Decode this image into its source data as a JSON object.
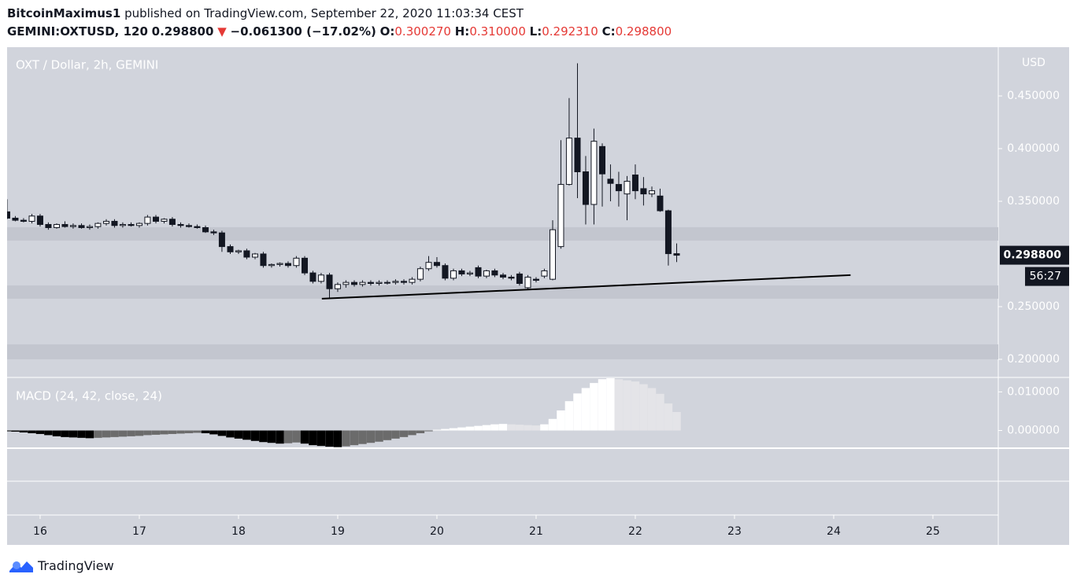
{
  "header": {
    "author": "BitcoinMaximus1",
    "published": "published on TradingView.com, September 22, 2020 11:03:34 CEST",
    "symbol": "GEMINI:OXTUSD, 120",
    "last": "0.298800",
    "arrow": "▼",
    "change": "−0.061300 (−17.02%)",
    "ohlc": [
      {
        "label": "O:",
        "value": "0.300270"
      },
      {
        "label": "H:",
        "value": "0.310000"
      },
      {
        "label": "L:",
        "value": "0.292310"
      },
      {
        "label": "C:",
        "value": "0.298800"
      }
    ]
  },
  "footer": {
    "brand": "TradingView"
  },
  "chart_data": [
    {
      "type": "candlestick",
      "title": "OXT / Dollar, 2h, GEMINI",
      "axis_label": "USD",
      "up_color": "#ffffff",
      "down_color": "#131722",
      "wick_color": "#131722",
      "x": [
        15.667,
        15.75,
        15.833,
        15.917,
        16,
        16.083,
        16.167,
        16.25,
        16.333,
        16.417,
        16.5,
        16.583,
        16.667,
        16.75,
        16.833,
        16.917,
        17,
        17.083,
        17.167,
        17.25,
        17.333,
        17.417,
        17.5,
        17.583,
        17.667,
        17.75,
        17.833,
        17.917,
        18,
        18.083,
        18.167,
        18.25,
        18.333,
        18.417,
        18.5,
        18.583,
        18.667,
        18.75,
        18.833,
        18.917,
        19,
        19.083,
        19.167,
        19.25,
        19.333,
        19.417,
        19.5,
        19.583,
        19.667,
        19.75,
        19.833,
        19.917,
        20,
        20.083,
        20.167,
        20.25,
        20.333,
        20.417,
        20.5,
        20.583,
        20.667,
        20.75,
        20.833,
        20.917,
        21,
        21.083,
        21.167,
        21.25,
        21.333,
        21.417,
        21.5,
        21.583,
        21.667,
        21.75,
        21.833,
        21.917,
        22,
        22.083,
        22.167,
        22.25,
        22.333,
        22.417
      ],
      "open": [
        0.34,
        0.334,
        0.332,
        0.331,
        0.336,
        0.328,
        0.325,
        0.328,
        0.326,
        0.327,
        0.325,
        0.326,
        0.329,
        0.331,
        0.327,
        0.328,
        0.327,
        0.329,
        0.335,
        0.331,
        0.333,
        0.328,
        0.327,
        0.326,
        0.325,
        0.321,
        0.32,
        0.307,
        0.302,
        0.303,
        0.297,
        0.3,
        0.289,
        0.29,
        0.291,
        0.289,
        0.296,
        0.282,
        0.274,
        0.28,
        0.267,
        0.271,
        0.273,
        0.271,
        0.273,
        0.272,
        0.273,
        0.273,
        0.274,
        0.273,
        0.276,
        0.286,
        0.292,
        0.289,
        0.277,
        0.284,
        0.281,
        0.287,
        0.279,
        0.284,
        0.28,
        0.278,
        0.281,
        0.268,
        0.276,
        0.279,
        0.276,
        0.307,
        0.366,
        0.41,
        0.378,
        0.347,
        0.402,
        0.371,
        0.366,
        0.357,
        0.375,
        0.362,
        0.357,
        0.355,
        0.341,
        0.30027
      ],
      "high": [
        0.352,
        0.336,
        0.334,
        0.338,
        0.338,
        0.33,
        0.329,
        0.331,
        0.329,
        0.329,
        0.328,
        0.33,
        0.333,
        0.333,
        0.33,
        0.33,
        0.33,
        0.337,
        0.337,
        0.334,
        0.335,
        0.33,
        0.329,
        0.328,
        0.327,
        0.323,
        0.322,
        0.309,
        0.304,
        0.305,
        0.301,
        0.302,
        0.291,
        0.292,
        0.293,
        0.298,
        0.298,
        0.284,
        0.282,
        0.282,
        0.273,
        0.275,
        0.275,
        0.275,
        0.275,
        0.275,
        0.275,
        0.276,
        0.276,
        0.278,
        0.288,
        0.298,
        0.297,
        0.291,
        0.286,
        0.286,
        0.284,
        0.289,
        0.285,
        0.286,
        0.282,
        0.28,
        0.283,
        0.28,
        0.278,
        0.286,
        0.332,
        0.408,
        0.448,
        0.481,
        0.393,
        0.419,
        0.405,
        0.385,
        0.378,
        0.374,
        0.385,
        0.373,
        0.364,
        0.362,
        0.342,
        0.31
      ],
      "low": [
        0.333,
        0.331,
        0.33,
        0.329,
        0.326,
        0.323,
        0.324,
        0.325,
        0.324,
        0.324,
        0.323,
        0.324,
        0.327,
        0.325,
        0.325,
        0.326,
        0.325,
        0.327,
        0.329,
        0.329,
        0.326,
        0.325,
        0.325,
        0.324,
        0.32,
        0.318,
        0.302,
        0.3,
        0.3,
        0.295,
        0.295,
        0.287,
        0.287,
        0.288,
        0.287,
        0.287,
        0.28,
        0.272,
        0.272,
        0.2575,
        0.264,
        0.268,
        0.269,
        0.269,
        0.27,
        0.27,
        0.271,
        0.271,
        0.271,
        0.271,
        0.274,
        0.284,
        0.287,
        0.275,
        0.275,
        0.279,
        0.279,
        0.277,
        0.277,
        0.278,
        0.276,
        0.275,
        0.27,
        0.266,
        0.273,
        0.277,
        0.275,
        0.305,
        0.365,
        0.353,
        0.328,
        0.328,
        0.345,
        0.35,
        0.345,
        0.332,
        0.352,
        0.346,
        0.354,
        0.34,
        0.289,
        0.29231
      ],
      "close": [
        0.334,
        0.332,
        0.331,
        0.336,
        0.328,
        0.325,
        0.328,
        0.326,
        0.327,
        0.325,
        0.326,
        0.329,
        0.331,
        0.327,
        0.328,
        0.327,
        0.329,
        0.335,
        0.331,
        0.333,
        0.328,
        0.327,
        0.326,
        0.325,
        0.321,
        0.32,
        0.307,
        0.302,
        0.303,
        0.297,
        0.3,
        0.289,
        0.29,
        0.291,
        0.289,
        0.296,
        0.282,
        0.274,
        0.28,
        0.267,
        0.271,
        0.273,
        0.271,
        0.273,
        0.272,
        0.273,
        0.273,
        0.274,
        0.273,
        0.276,
        0.286,
        0.292,
        0.289,
        0.277,
        0.284,
        0.281,
        0.282,
        0.279,
        0.284,
        0.28,
        0.278,
        0.277,
        0.272,
        0.278,
        0.275,
        0.284,
        0.323,
        0.366,
        0.41,
        0.378,
        0.347,
        0.407,
        0.376,
        0.367,
        0.36,
        0.369,
        0.36,
        0.357,
        0.36,
        0.341,
        0.3003,
        0.2988
      ],
      "zones": [
        [
          0.3254,
          0.3127
        ],
        [
          0.2701,
          0.2575
        ],
        [
          0.2142,
          0.2
        ]
      ],
      "trendline": {
        "x": [
          18.84,
          24.17
        ],
        "y": [
          0.2575,
          0.2799
        ]
      },
      "last_price": {
        "value": 0.2988,
        "label": "0.298800"
      },
      "countdown": "56:27",
      "ylim": [
        0.1828,
        0.4963
      ],
      "yticks": [
        {
          "value": 0.45,
          "label": "0.450000"
        },
        {
          "value": 0.4,
          "label": "0.400000"
        },
        {
          "value": 0.35,
          "label": "0.350000"
        },
        {
          "value": 0.25,
          "label": "0.250000"
        },
        {
          "value": 0.2,
          "label": "0.200000"
        }
      ],
      "xlim": [
        15.667,
        25.659
      ],
      "xticks": [
        16,
        17,
        18,
        19,
        20,
        21,
        22,
        23,
        24,
        25
      ]
    },
    {
      "type": "histogram_macd",
      "title": "MACD (24, 42, close, 24)",
      "colors": {
        "up_rising": "#ffffff",
        "up_falling": "#e4e4e8",
        "down_falling": "#000000",
        "down_rising": "#6b6b6b"
      },
      "x": [
        15.667,
        15.75,
        15.833,
        15.917,
        16,
        16.083,
        16.167,
        16.25,
        16.333,
        16.417,
        16.5,
        16.583,
        16.667,
        16.75,
        16.833,
        16.917,
        17,
        17.083,
        17.167,
        17.25,
        17.333,
        17.417,
        17.5,
        17.583,
        17.667,
        17.75,
        17.833,
        17.917,
        18,
        18.083,
        18.167,
        18.25,
        18.333,
        18.417,
        18.5,
        18.583,
        18.667,
        18.75,
        18.833,
        18.917,
        19,
        19.083,
        19.167,
        19.25,
        19.333,
        19.417,
        19.5,
        19.583,
        19.667,
        19.75,
        19.833,
        19.917,
        20,
        20.083,
        20.167,
        20.25,
        20.333,
        20.417,
        20.5,
        20.583,
        20.667,
        20.75,
        20.833,
        20.917,
        21,
        21.083,
        21.167,
        21.25,
        21.333,
        21.417,
        21.5,
        21.583,
        21.667,
        21.75,
        21.833,
        21.917,
        22,
        22.083,
        22.167,
        22.25,
        22.333,
        22.417
      ],
      "values": [
        -0.0002,
        -0.0003,
        -0.0005,
        -0.0007,
        -0.0009,
        -0.0012,
        -0.0015,
        -0.0017,
        -0.0018,
        -0.0019,
        -0.002,
        -0.0019,
        -0.0018,
        -0.0017,
        -0.0016,
        -0.0015,
        -0.0014,
        -0.0012,
        -0.0011,
        -0.001,
        -0.0009,
        -0.0008,
        -0.0007,
        -0.0006,
        -0.0007,
        -0.001,
        -0.0014,
        -0.0018,
        -0.0021,
        -0.0024,
        -0.0027,
        -0.003,
        -0.0032,
        -0.0034,
        -0.0033,
        -0.0031,
        -0.0034,
        -0.0038,
        -0.004,
        -0.0042,
        -0.0043,
        -0.0041,
        -0.0038,
        -0.0035,
        -0.0032,
        -0.0029,
        -0.0025,
        -0.0021,
        -0.0017,
        -0.0012,
        -0.0007,
        -0.0002,
        0.0002,
        0.0004,
        0.0006,
        0.0008,
        0.001,
        0.0012,
        0.0014,
        0.0016,
        0.0017,
        0.0016,
        0.0015,
        0.0014,
        0.0013,
        0.0016,
        0.003,
        0.0052,
        0.0076,
        0.0096,
        0.011,
        0.0123,
        0.0133,
        0.0136,
        0.0133,
        0.013,
        0.0127,
        0.012,
        0.011,
        0.0095,
        0.007,
        0.0048
      ],
      "ylim": [
        -0.00458,
        0.01375
      ],
      "yticks": [
        {
          "value": 0.01,
          "label": "0.010000"
        },
        {
          "value": 0,
          "label": "0.000000"
        }
      ]
    }
  ]
}
